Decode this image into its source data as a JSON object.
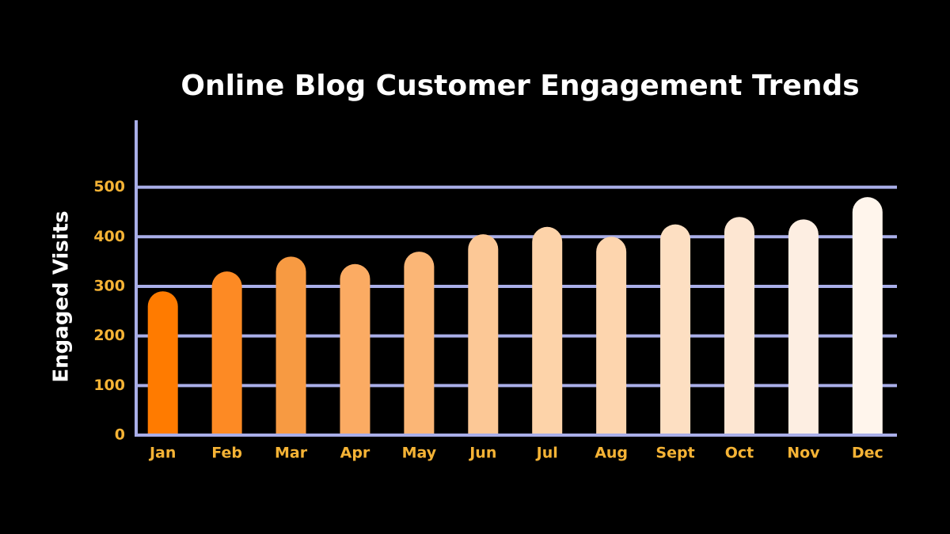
{
  "chart_data": {
    "type": "bar",
    "title": "Online Blog Customer Engagement Trends",
    "y_label": "Engaged Visits",
    "categories": [
      "Jan",
      "Feb",
      "Mar",
      "Apr",
      "May",
      "Jun",
      "Jul",
      "Aug",
      "Sept",
      "Oct",
      "Nov",
      "Dec"
    ],
    "values": [
      290,
      330,
      360,
      345,
      370,
      405,
      420,
      400,
      425,
      440,
      435,
      480
    ],
    "colors": [
      "#ff7b00",
      "#fd8a24",
      "#f79a42",
      "#fbab63",
      "#fbb676",
      "#fcc896",
      "#fdd3a9",
      "#fdd5ae",
      "#fddfc2",
      "#fde6d2",
      "#fdeee2",
      "#fff5ec"
    ],
    "ylim": [
      0,
      635
    ],
    "yticks": [
      0,
      100,
      200,
      300,
      400,
      500
    ],
    "grid": true
  }
}
